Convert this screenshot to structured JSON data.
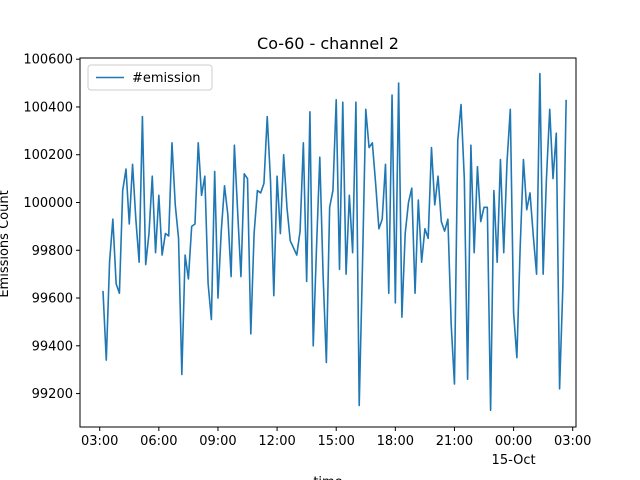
{
  "chart_data": {
    "type": "line",
    "title": "Co-60 - channel 2",
    "xlabel": "time",
    "ylabel": "Emissions Count",
    "x_start": "2023-10-14 03:10",
    "x_step_minutes": 10,
    "xlim": [
      "2023-10-14 02:00",
      "2023-10-15 03:10"
    ],
    "ylim": [
      99060,
      100605
    ],
    "x_ticks": [
      {
        "at": "2023-10-14 03:00",
        "label": "03:00",
        "sublabel": ""
      },
      {
        "at": "2023-10-14 06:00",
        "label": "06:00",
        "sublabel": ""
      },
      {
        "at": "2023-10-14 09:00",
        "label": "09:00",
        "sublabel": ""
      },
      {
        "at": "2023-10-14 12:00",
        "label": "12:00",
        "sublabel": ""
      },
      {
        "at": "2023-10-14 15:00",
        "label": "15:00",
        "sublabel": ""
      },
      {
        "at": "2023-10-14 18:00",
        "label": "18:00",
        "sublabel": ""
      },
      {
        "at": "2023-10-14 21:00",
        "label": "21:00",
        "sublabel": ""
      },
      {
        "at": "2023-10-15 00:00",
        "label": "00:00",
        "sublabel": "15-Oct"
      },
      {
        "at": "2023-10-15 03:00",
        "label": "03:00",
        "sublabel": ""
      }
    ],
    "y_ticks": [
      99200,
      99400,
      99600,
      99800,
      100000,
      100200,
      100400,
      100600
    ],
    "legend_position": "upper-left",
    "grid": false,
    "series": [
      {
        "name": "#emission",
        "color": "#1f77b4",
        "values": [
          99630,
          99340,
          99750,
          99930,
          99660,
          99620,
          100050,
          100140,
          99910,
          100160,
          99930,
          99750,
          100360,
          99740,
          99870,
          100110,
          99790,
          100030,
          99780,
          99870,
          99860,
          100250,
          99990,
          99850,
          99280,
          99780,
          99680,
          99900,
          99910,
          100250,
          100030,
          100110,
          99660,
          99510,
          100130,
          99600,
          99880,
          100070,
          99950,
          99690,
          100240,
          99960,
          99690,
          100120,
          100100,
          99450,
          99870,
          100050,
          100040,
          100080,
          100360,
          100090,
          99610,
          100110,
          99870,
          100200,
          99980,
          99840,
          99810,
          99780,
          99880,
          100250,
          99670,
          100380,
          99400,
          99810,
          100190,
          99700,
          99330,
          99980,
          100050,
          100430,
          99720,
          100420,
          99700,
          100030,
          99790,
          100420,
          99150,
          99740,
          100390,
          100230,
          100250,
          100080,
          99890,
          99930,
          100160,
          99620,
          100450,
          99580,
          100500,
          99520,
          99870,
          100000,
          100060,
          99620,
          100010,
          99750,
          99890,
          99850,
          100230,
          99990,
          100110,
          99920,
          99880,
          99930,
          99490,
          99240,
          100260,
          100410,
          100100,
          99260,
          100240,
          99790,
          100150,
          99920,
          99980,
          99980,
          99130,
          100050,
          99750,
          100180,
          99790,
          100170,
          100390,
          99540,
          99350,
          99810,
          100180,
          99970,
          100040,
          99860,
          99700,
          100540,
          99700,
          100100,
          100390,
          100100,
          100290,
          99220,
          99650,
          100430
        ]
      }
    ]
  }
}
